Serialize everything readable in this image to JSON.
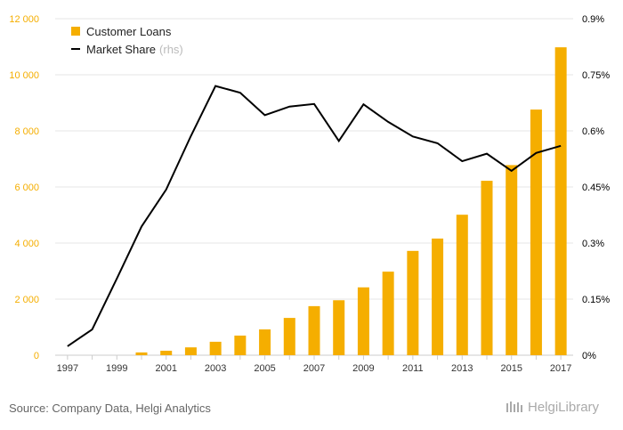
{
  "colors": {
    "bar": "#F5AE00",
    "line": "#000000",
    "left_axis_text": "#F5AE00",
    "right_axis_text": "#000000",
    "grid": "#e6e6e6",
    "note": "#bbbbbb"
  },
  "source_text": "Source: Company Data, Helgi Analytics",
  "logo_text": "HelgiLibrary",
  "chart_data": {
    "type": "bar",
    "x": [
      1997,
      1998,
      1999,
      2000,
      2001,
      2002,
      2003,
      2004,
      2005,
      2006,
      2007,
      2008,
      2009,
      2010,
      2011,
      2012,
      2013,
      2014,
      2015,
      2016,
      2017
    ],
    "x_tick_labels": [
      "1997",
      "1999",
      "2001",
      "2003",
      "2005",
      "2007",
      "2009",
      "2011",
      "2013",
      "2015",
      "2017"
    ],
    "series": [
      {
        "name": "Customer Loans",
        "type": "bar",
        "axis": "left",
        "values": [
          0,
          0,
          0,
          100,
          160,
          280,
          480,
          700,
          920,
          1330,
          1750,
          1960,
          2420,
          2980,
          3720,
          4160,
          5010,
          6220,
          6780,
          8760,
          10980
        ]
      },
      {
        "name": "Market Share",
        "note": "(rhs)",
        "type": "line",
        "axis": "right",
        "values": [
          0.024,
          0.069,
          0.205,
          0.344,
          0.443,
          0.586,
          0.72,
          0.702,
          0.642,
          0.665,
          0.672,
          0.573,
          0.671,
          0.624,
          0.585,
          0.567,
          0.519,
          0.539,
          0.493,
          0.541,
          0.56
        ]
      }
    ],
    "ylim": [
      0,
      12000
    ],
    "y_ticks": [
      0,
      2000,
      4000,
      6000,
      8000,
      10000,
      12000
    ],
    "y_tick_labels": [
      "0",
      "2 000",
      "4 000",
      "6 000",
      "8 000",
      "10 000",
      "12 000"
    ],
    "y2lim": [
      0,
      0.9
    ],
    "y2_ticks": [
      0,
      0.15,
      0.3,
      0.45,
      0.6,
      0.75,
      0.9
    ],
    "y2_tick_labels": [
      "0%",
      "0.15%",
      "0.3%",
      "0.45%",
      "0.6%",
      "0.75%",
      "0.9%"
    ],
    "grid": true,
    "legend_position": "top-left"
  }
}
